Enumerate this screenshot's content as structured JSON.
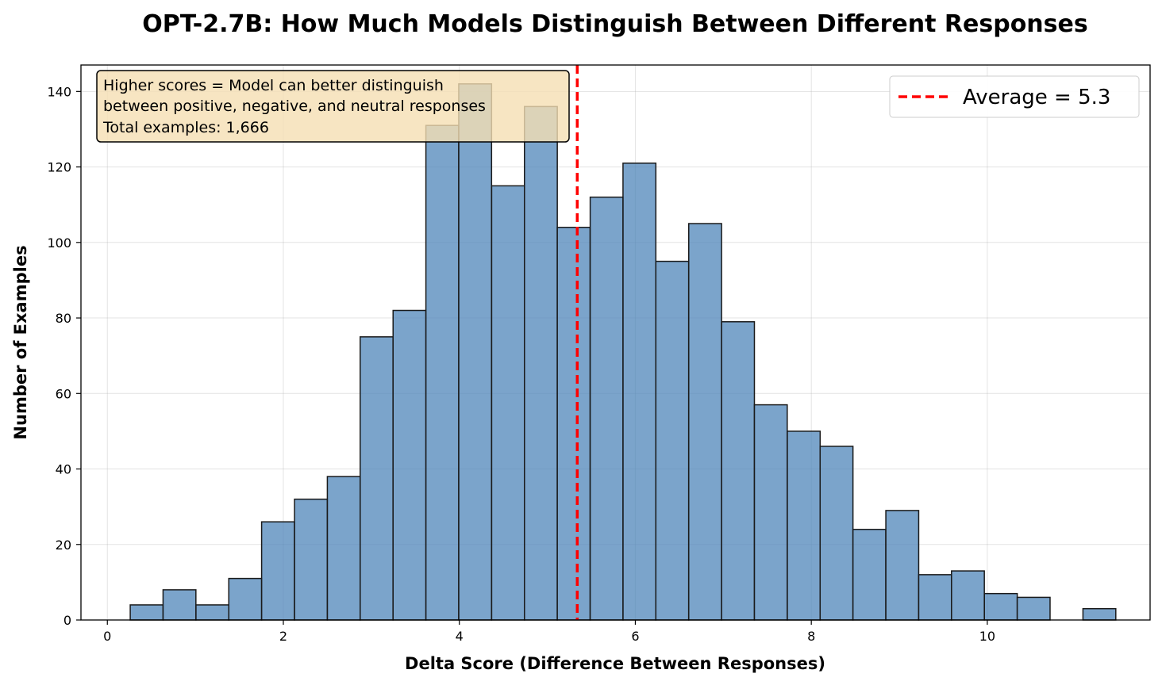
{
  "chart_data": {
    "type": "bar",
    "title": "OPT-2.7B: How Much Models Distinguish Between Different Responses",
    "xlabel": "Delta Score (Difference Between Responses)",
    "ylabel": "Number of Examples",
    "xlim": [
      -0.3,
      11.85
    ],
    "ylim": [
      0,
      147
    ],
    "xticks": [
      0,
      2,
      4,
      6,
      8,
      10
    ],
    "yticks": [
      0,
      20,
      40,
      60,
      80,
      100,
      120,
      140
    ],
    "grid": true,
    "bin_width": 0.3733,
    "bins": [
      {
        "x0": 0.26,
        "count": 4
      },
      {
        "x0": 0.633,
        "count": 8
      },
      {
        "x0": 1.007,
        "count": 4
      },
      {
        "x0": 1.38,
        "count": 11
      },
      {
        "x0": 1.753,
        "count": 26
      },
      {
        "x0": 2.127,
        "count": 32
      },
      {
        "x0": 2.5,
        "count": 38
      },
      {
        "x0": 2.873,
        "count": 75
      },
      {
        "x0": 3.247,
        "count": 82
      },
      {
        "x0": 3.62,
        "count": 131
      },
      {
        "x0": 3.993,
        "count": 142
      },
      {
        "x0": 4.367,
        "count": 115
      },
      {
        "x0": 4.74,
        "count": 136
      },
      {
        "x0": 5.113,
        "count": 104
      },
      {
        "x0": 5.487,
        "count": 112
      },
      {
        "x0": 5.86,
        "count": 121
      },
      {
        "x0": 6.233,
        "count": 95
      },
      {
        "x0": 6.607,
        "count": 105
      },
      {
        "x0": 6.98,
        "count": 79
      },
      {
        "x0": 7.353,
        "count": 57
      },
      {
        "x0": 7.727,
        "count": 50
      },
      {
        "x0": 8.1,
        "count": 46
      },
      {
        "x0": 8.473,
        "count": 24
      },
      {
        "x0": 8.847,
        "count": 29
      },
      {
        "x0": 9.22,
        "count": 12
      },
      {
        "x0": 9.593,
        "count": 13
      },
      {
        "x0": 9.967,
        "count": 7
      },
      {
        "x0": 10.34,
        "count": 6
      },
      {
        "x0": 10.713,
        "count": 0
      },
      {
        "x0": 11.087,
        "count": 3
      }
    ],
    "bar_color": "#4f86b9",
    "mean_line": {
      "value": 5.34,
      "color": "#ff0000"
    },
    "legend": {
      "entries": [
        "Average = 5.3"
      ],
      "placement": "top-right"
    },
    "annotation": {
      "lines": [
        "Higher scores = Model can better distinguish",
        "between positive, negative, and neutral responses",
        "Total examples: 1,666"
      ],
      "placement": "top-left",
      "background": "#f5deb3"
    }
  }
}
